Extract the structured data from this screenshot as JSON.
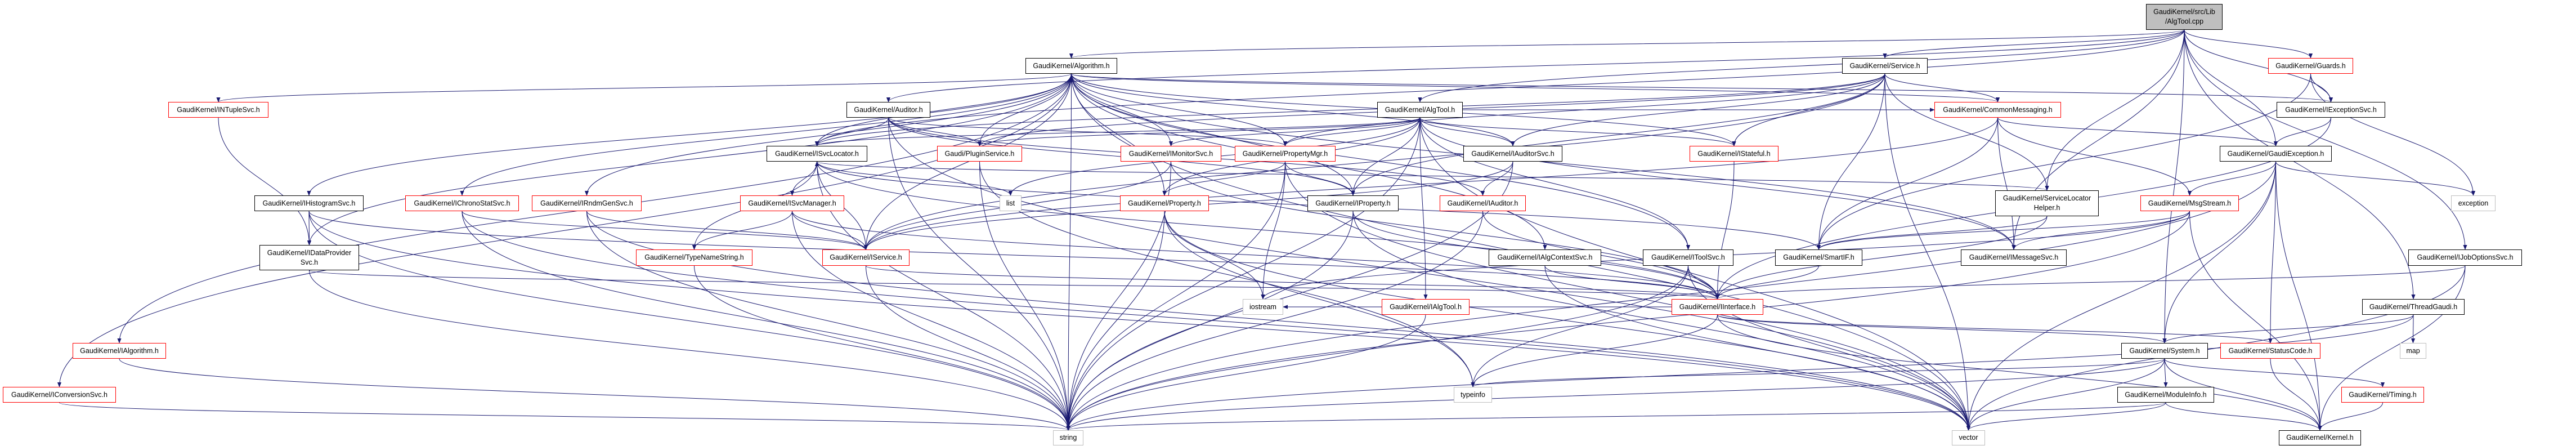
{
  "graph": {
    "edge_color": "#191970",
    "colors": {
      "documented_border": "#000000",
      "truncated_border": "#ff0000",
      "external_border": "#bfbfbf",
      "root_fill": "#bfbfbf"
    },
    "nodes": {
      "root": {
        "label": "GaudiKernel/src/Lib\n/AlgTool.cpp",
        "kind": "root"
      },
      "algorithm": {
        "label": "GaudiKernel/Algorithm.h",
        "kind": "black"
      },
      "service": {
        "label": "GaudiKernel/Service.h",
        "kind": "black"
      },
      "guards": {
        "label": "GaudiKernel/Guards.h",
        "kind": "red"
      },
      "intuplesvc": {
        "label": "GaudiKernel/INTupleSvc.h",
        "kind": "red"
      },
      "auditor": {
        "label": "GaudiKernel/Auditor.h",
        "kind": "black"
      },
      "algtool_h": {
        "label": "GaudiKernel/AlgTool.h",
        "kind": "black"
      },
      "commonmessaging": {
        "label": "GaudiKernel/CommonMessaging.h",
        "kind": "red"
      },
      "iexceptionsvc": {
        "label": "GaudiKernel/IExceptionSvc.h",
        "kind": "black"
      },
      "isvclocator": {
        "label": "GaudiKernel/ISvcLocator.h",
        "kind": "black"
      },
      "pluginservice": {
        "label": "Gaudi/PluginService.h",
        "kind": "red"
      },
      "imonitorsvc": {
        "label": "GaudiKernel/IMonitorSvc.h",
        "kind": "red"
      },
      "propertymgr": {
        "label": "GaudiKernel/PropertyMgr.h",
        "kind": "red"
      },
      "iauditorsvc": {
        "label": "GaudiKernel/IAuditorSvc.h",
        "kind": "black"
      },
      "istateful": {
        "label": "GaudiKernel/IStateful.h",
        "kind": "red"
      },
      "gaudiexception": {
        "label": "GaudiKernel/GaudiException.h",
        "kind": "black"
      },
      "ihistogramsvc": {
        "label": "GaudiKernel/IHistogramSvc.h",
        "kind": "black"
      },
      "ichronostatsvc": {
        "label": "GaudiKernel/IChronoStatSvc.h",
        "kind": "red"
      },
      "irndmgensvc": {
        "label": "GaudiKernel/IRndmGenSvc.h",
        "kind": "red"
      },
      "isvcmanager": {
        "label": "GaudiKernel/ISvcManager.h",
        "kind": "red"
      },
      "list": {
        "label": "list",
        "kind": "gray"
      },
      "property": {
        "label": "GaudiKernel/Property.h",
        "kind": "red"
      },
      "iproperty": {
        "label": "GaudiKernel/IProperty.h",
        "kind": "black"
      },
      "iauditor": {
        "label": "GaudiKernel/IAuditor.h",
        "kind": "red"
      },
      "servicelocatorhelper": {
        "label": "GaudiKernel/ServiceLocator\nHelper.h",
        "kind": "black"
      },
      "msgstream": {
        "label": "GaudiKernel/MsgStream.h",
        "kind": "red"
      },
      "exception": {
        "label": "exception",
        "kind": "gray"
      },
      "idataprovidersvc": {
        "label": "GaudiKernel/IDataProvider\nSvc.h",
        "kind": "black"
      },
      "typenamestring": {
        "label": "GaudiKernel/TypeNameString.h",
        "kind": "red"
      },
      "iservice": {
        "label": "GaudiKernel/IService.h",
        "kind": "red"
      },
      "ialgcontextsvc": {
        "label": "GaudiKernel/IAlgContextSvc.h",
        "kind": "black"
      },
      "itoolsvc": {
        "label": "GaudiKernel/IToolSvc.h",
        "kind": "black"
      },
      "smartif": {
        "label": "GaudiKernel/SmartIF.h",
        "kind": "black"
      },
      "imessagesvc": {
        "label": "GaudiKernel/IMessageSvc.h",
        "kind": "black"
      },
      "ijoboptionssvc": {
        "label": "GaudiKernel/IJobOptionsSvc.h",
        "kind": "black"
      },
      "ialgtool": {
        "label": "GaudiKernel/IAlgTool.h",
        "kind": "red"
      },
      "iinterface": {
        "label": "GaudiKernel/IInterface.h",
        "kind": "red"
      },
      "iostream": {
        "label": "iostream",
        "kind": "gray"
      },
      "threadgaudi": {
        "label": "GaudiKernel/ThreadGaudi.h",
        "kind": "black"
      },
      "ialgorithm": {
        "label": "GaudiKernel/IAlgorithm.h",
        "kind": "red"
      },
      "system": {
        "label": "GaudiKernel/System.h",
        "kind": "black"
      },
      "statuscode": {
        "label": "GaudiKernel/StatusCode.h",
        "kind": "red"
      },
      "map": {
        "label": "map",
        "kind": "gray"
      },
      "iconversionsvc": {
        "label": "GaudiKernel/IConversionSvc.h",
        "kind": "red"
      },
      "typeinfo": {
        "label": "typeinfo",
        "kind": "gray"
      },
      "moduleinfo": {
        "label": "GaudiKernel/ModuleInfo.h",
        "kind": "black"
      },
      "timing": {
        "label": "GaudiKernel/Timing.h",
        "kind": "red"
      },
      "string": {
        "label": "string",
        "kind": "gray"
      },
      "vector": {
        "label": "vector",
        "kind": "gray"
      },
      "kernel": {
        "label": "GaudiKernel/Kernel.h",
        "kind": "black"
      }
    },
    "edges": [
      [
        "root",
        "algtool_h"
      ],
      [
        "root",
        "algorithm"
      ],
      [
        "root",
        "service"
      ],
      [
        "root",
        "auditor"
      ],
      [
        "root",
        "gaudiexception"
      ],
      [
        "root",
        "guards"
      ],
      [
        "root",
        "servicelocatorhelper"
      ],
      [
        "root",
        "imessagesvc"
      ],
      [
        "root",
        "system"
      ],
      [
        "root",
        "threadgaudi"
      ],
      [
        "root",
        "ijoboptionssvc"
      ],
      [
        "root",
        "isvclocator"
      ],
      [
        "root",
        "iexceptionsvc"
      ],
      [
        "algorithm",
        "ialgorithm"
      ],
      [
        "algorithm",
        "iconversionsvc"
      ],
      [
        "algorithm",
        "intuplesvc"
      ],
      [
        "algorithm",
        "ihistogramsvc"
      ],
      [
        "algorithm",
        "ichronostatsvc"
      ],
      [
        "algorithm",
        "irndmgensvc"
      ],
      [
        "algorithm",
        "idataprovidersvc"
      ],
      [
        "algorithm",
        "isvclocator"
      ],
      [
        "algorithm",
        "pluginservice"
      ],
      [
        "algorithm",
        "imonitorsvc"
      ],
      [
        "algorithm",
        "propertymgr"
      ],
      [
        "algorithm",
        "property"
      ],
      [
        "algorithm",
        "iproperty"
      ],
      [
        "algorithm",
        "istateful"
      ],
      [
        "algorithm",
        "iauditorsvc"
      ],
      [
        "algorithm",
        "imessagesvc"
      ],
      [
        "algorithm",
        "iservice"
      ],
      [
        "algorithm",
        "ialgcontextsvc"
      ],
      [
        "algorithm",
        "itoolsvc"
      ],
      [
        "algorithm",
        "iexceptionsvc"
      ],
      [
        "algorithm",
        "string"
      ],
      [
        "algorithm",
        "vector"
      ],
      [
        "algorithm",
        "commonmessaging"
      ],
      [
        "auditor",
        "isvclocator"
      ],
      [
        "auditor",
        "pluginservice"
      ],
      [
        "auditor",
        "propertymgr"
      ],
      [
        "auditor",
        "iauditor"
      ],
      [
        "auditor",
        "iproperty"
      ],
      [
        "auditor",
        "string"
      ],
      [
        "auditor",
        "vector"
      ],
      [
        "algtool_h",
        "pluginservice"
      ],
      [
        "algtool_h",
        "imonitorsvc"
      ],
      [
        "algtool_h",
        "propertymgr"
      ],
      [
        "algtool_h",
        "property"
      ],
      [
        "algtool_h",
        "iproperty"
      ],
      [
        "algtool_h",
        "iauditorsvc"
      ],
      [
        "algtool_h",
        "istateful"
      ],
      [
        "algtool_h",
        "ialgtool"
      ],
      [
        "algtool_h",
        "itoolsvc"
      ],
      [
        "algtool_h",
        "isvclocator"
      ],
      [
        "algtool_h",
        "imessagesvc"
      ],
      [
        "algtool_h",
        "list"
      ],
      [
        "algtool_h",
        "vector"
      ],
      [
        "algtool_h",
        "string"
      ],
      [
        "algtool_h",
        "commonmessaging"
      ],
      [
        "service",
        "isvclocator"
      ],
      [
        "service",
        "iservice"
      ],
      [
        "service",
        "propertymgr"
      ],
      [
        "service",
        "iproperty"
      ],
      [
        "service",
        "istateful"
      ],
      [
        "service",
        "commonmessaging"
      ],
      [
        "service",
        "servicelocatorhelper"
      ],
      [
        "service",
        "iauditorsvc"
      ],
      [
        "service",
        "pluginservice"
      ],
      [
        "service",
        "smartif"
      ],
      [
        "service",
        "vector"
      ],
      [
        "commonmessaging",
        "imessagesvc"
      ],
      [
        "commonmessaging",
        "msgstream"
      ],
      [
        "commonmessaging",
        "smartif"
      ],
      [
        "commonmessaging",
        "gaudiexception"
      ],
      [
        "commonmessaging",
        "iservice"
      ],
      [
        "servicelocatorhelper",
        "smartif"
      ],
      [
        "servicelocatorhelper",
        "isvclocator"
      ],
      [
        "servicelocatorhelper",
        "iinterface"
      ],
      [
        "msgstream",
        "imessagesvc"
      ],
      [
        "msgstream",
        "smartif"
      ],
      [
        "msgstream",
        "iostream"
      ],
      [
        "msgstream",
        "string"
      ],
      [
        "msgstream",
        "kernel"
      ],
      [
        "gaudiexception",
        "msgstream"
      ],
      [
        "gaudiexception",
        "system"
      ],
      [
        "gaudiexception",
        "statuscode"
      ],
      [
        "gaudiexception",
        "exception"
      ],
      [
        "gaudiexception",
        "string"
      ],
      [
        "gaudiexception",
        "vector"
      ],
      [
        "gaudiexception",
        "kernel"
      ],
      [
        "guards",
        "iexceptionsvc"
      ],
      [
        "guards",
        "exception"
      ],
      [
        "guards",
        "smartif"
      ],
      [
        "iexceptionsvc",
        "gaudiexception"
      ],
      [
        "iexceptionsvc",
        "iinterface"
      ],
      [
        "ijoboptionssvc",
        "iinterface"
      ],
      [
        "ijoboptionssvc",
        "vector"
      ],
      [
        "ijoboptionssvc",
        "kernel"
      ],
      [
        "threadgaudi",
        "map"
      ],
      [
        "threadgaudi",
        "system"
      ],
      [
        "threadgaudi",
        "string"
      ],
      [
        "system",
        "moduleinfo"
      ],
      [
        "system",
        "timing"
      ],
      [
        "system",
        "kernel"
      ],
      [
        "system",
        "typeinfo"
      ],
      [
        "system",
        "string"
      ],
      [
        "system",
        "vector"
      ],
      [
        "moduleinfo",
        "kernel"
      ],
      [
        "moduleinfo",
        "string"
      ],
      [
        "moduleinfo",
        "vector"
      ],
      [
        "timing",
        "kernel"
      ],
      [
        "statuscode",
        "kernel"
      ],
      [
        "isvclocator",
        "isvcmanager"
      ],
      [
        "isvclocator",
        "iservice"
      ],
      [
        "isvclocator",
        "typenamestring"
      ],
      [
        "isvclocator",
        "iinterface"
      ],
      [
        "isvclocator",
        "smartif"
      ],
      [
        "isvclocator",
        "list"
      ],
      [
        "isvclocator",
        "string"
      ],
      [
        "isvcmanager",
        "iservice"
      ],
      [
        "isvcmanager",
        "typenamestring"
      ],
      [
        "isvcmanager",
        "iinterface"
      ],
      [
        "isvcmanager",
        "string"
      ],
      [
        "typenamestring",
        "string"
      ],
      [
        "iservice",
        "iinterface"
      ],
      [
        "iservice",
        "string"
      ],
      [
        "iinterface",
        "system"
      ],
      [
        "iinterface",
        "statuscode"
      ],
      [
        "iinterface",
        "kernel"
      ],
      [
        "iinterface",
        "typeinfo"
      ],
      [
        "iinterface",
        "iostream"
      ],
      [
        "smartif",
        "iinterface"
      ],
      [
        "itoolsvc",
        "iinterface"
      ],
      [
        "itoolsvc",
        "typeinfo"
      ],
      [
        "itoolsvc",
        "string"
      ],
      [
        "itoolsvc",
        "vector"
      ],
      [
        "ialgcontextsvc",
        "iinterface"
      ],
      [
        "ialgcontextsvc",
        "vector"
      ],
      [
        "iauditorsvc",
        "iauditor"
      ],
      [
        "iauditorsvc",
        "iservice"
      ],
      [
        "iauditorsvc",
        "string"
      ],
      [
        "iauditor",
        "iinterface"
      ],
      [
        "iauditor",
        "string"
      ],
      [
        "ialgtool",
        "string"
      ],
      [
        "istateful",
        "iinterface"
      ],
      [
        "iproperty",
        "iinterface"
      ],
      [
        "iproperty",
        "string"
      ],
      [
        "iproperty",
        "vector"
      ],
      [
        "property",
        "string"
      ],
      [
        "property",
        "vector"
      ],
      [
        "property",
        "iostream"
      ],
      [
        "property",
        "typeinfo"
      ],
      [
        "propertymgr",
        "property"
      ],
      [
        "propertymgr",
        "iproperty"
      ],
      [
        "propertymgr",
        "iostream"
      ],
      [
        "propertymgr",
        "string"
      ],
      [
        "propertymgr",
        "vector"
      ],
      [
        "imonitorsvc",
        "iservice"
      ],
      [
        "imonitorsvc",
        "string"
      ],
      [
        "imonitorsvc",
        "iinterface"
      ],
      [
        "pluginservice",
        "string"
      ],
      [
        "pluginservice",
        "typeinfo"
      ],
      [
        "ihistogramsvc",
        "idataprovidersvc"
      ],
      [
        "ihistogramsvc",
        "iinterface"
      ],
      [
        "ihistogramsvc",
        "string"
      ],
      [
        "ihistogramsvc",
        "vector"
      ],
      [
        "idataprovidersvc",
        "iinterface"
      ],
      [
        "idataprovidersvc",
        "string"
      ],
      [
        "intuplesvc",
        "idataprovidersvc"
      ],
      [
        "ichronostatsvc",
        "iservice"
      ],
      [
        "ichronostatsvc",
        "string"
      ],
      [
        "ichronostatsvc",
        "vector"
      ],
      [
        "irndmgensvc",
        "iservice"
      ],
      [
        "irndmgensvc",
        "string"
      ],
      [
        "irndmgensvc",
        "vector"
      ],
      [
        "ialgorithm",
        "string"
      ],
      [
        "iconversionsvc",
        "string"
      ]
    ]
  }
}
